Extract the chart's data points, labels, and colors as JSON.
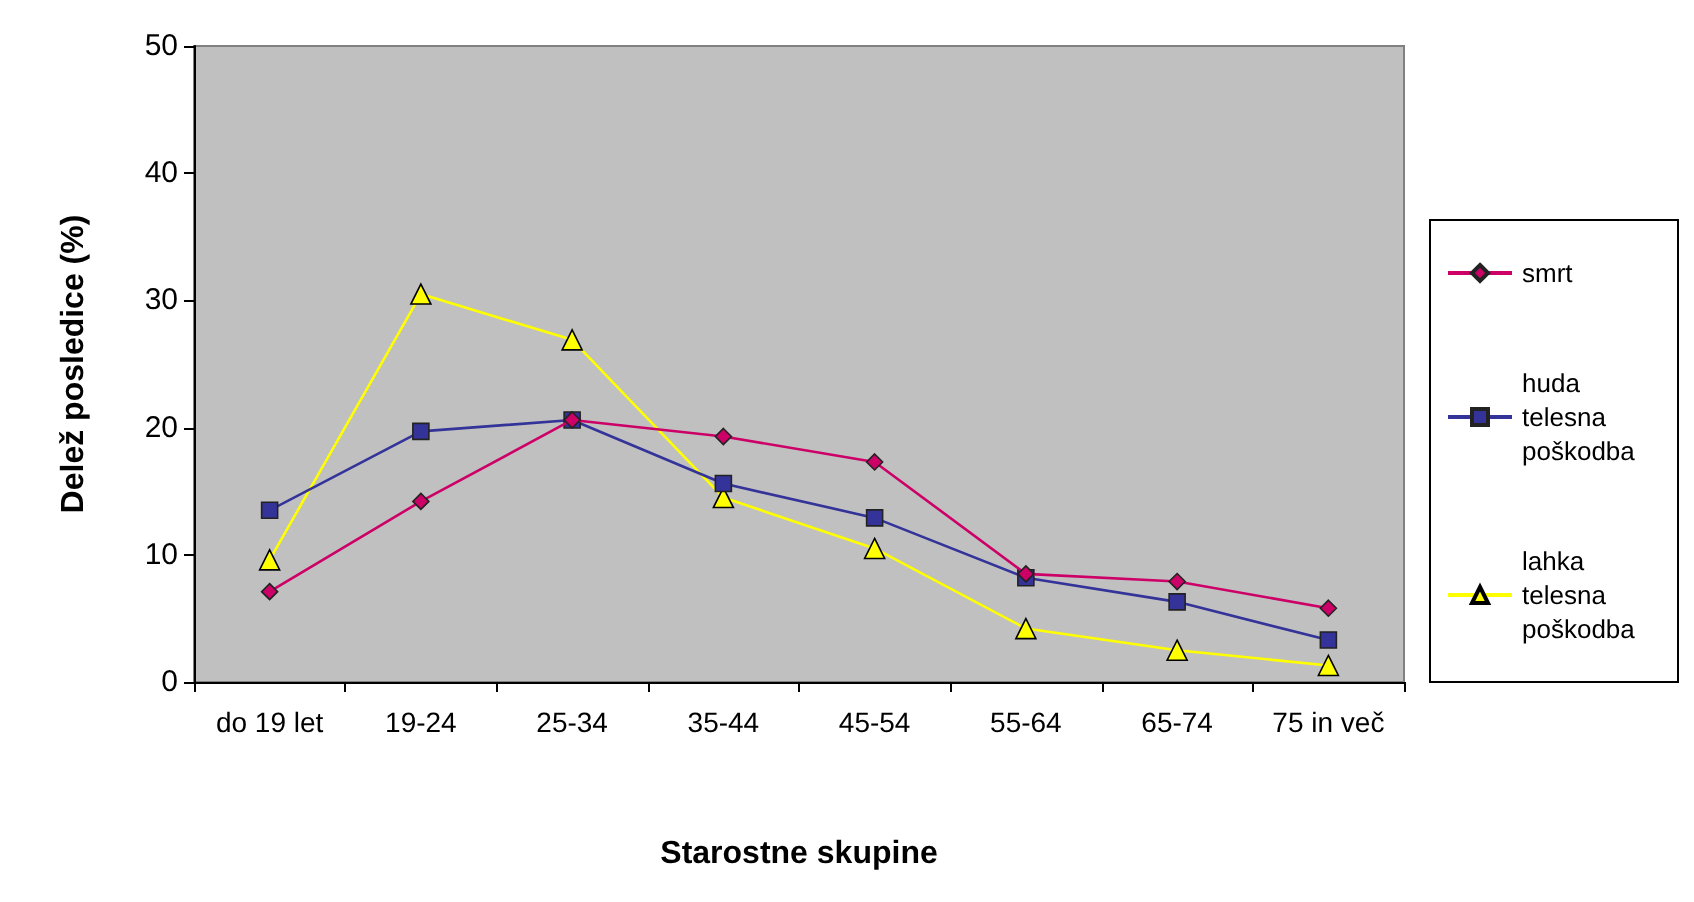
{
  "chart_data": {
    "type": "line",
    "xlabel": "Starostne skupine",
    "ylabel": "Delež posledice (%)",
    "categories": [
      "do 19 let",
      "19-24",
      "25-34",
      "35-44",
      "45-54",
      "55-64",
      "65-74",
      "75 in več"
    ],
    "series": [
      {
        "name": "smrt",
        "color": "#cc0066",
        "marker": "diamond",
        "values": [
          7.1,
          14.2,
          20.6,
          19.3,
          17.3,
          8.5,
          7.9,
          5.8
        ]
      },
      {
        "name": "huda telesna poškodba",
        "color": "#333399",
        "marker": "square",
        "values": [
          13.5,
          19.7,
          20.6,
          15.6,
          12.9,
          8.2,
          6.3,
          3.3
        ]
      },
      {
        "name": "lahka telesna poškodba",
        "color": "#ffff00",
        "marker": "triangle",
        "values": [
          9.6,
          30.5,
          26.9,
          14.5,
          10.5,
          4.2,
          2.5,
          1.3
        ]
      }
    ],
    "ylim": [
      0,
      50
    ],
    "yticks": [
      0,
      10,
      20,
      30,
      40,
      50
    ],
    "grid": false,
    "legend": "right"
  }
}
